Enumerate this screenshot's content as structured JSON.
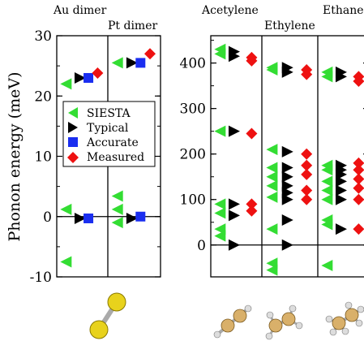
{
  "chart_data": {
    "type": "scatter",
    "ylabel": "Phonon energy (meV)",
    "legend": {
      "placement": "inside left panel",
      "entries": [
        {
          "label": "SIESTA",
          "marker": "triangle-left",
          "color": "#33dd33"
        },
        {
          "label": "Typical",
          "marker": "triangle-right",
          "color": "#000000"
        },
        {
          "label": "Accurate",
          "marker": "square",
          "color": "#1a2ef0"
        },
        {
          "label": "Measured",
          "marker": "diamond",
          "color": "#ee1111"
        }
      ]
    },
    "panels": [
      {
        "ylim": [
          -10,
          30
        ],
        "yticks": [
          "30",
          "20",
          "10",
          "0",
          "-10"
        ],
        "ytick_values": [
          30,
          20,
          10,
          0,
          -10
        ],
        "groups": [
          {
            "label": "Au dimer",
            "series": {
              "SIESTA": [
                22,
                1.2,
                -7.5
              ],
              "Typical": [
                23,
                -0.3
              ],
              "Accurate": [
                23,
                -0.3
              ],
              "Measured": [
                23.8
              ]
            }
          },
          {
            "label": "Pt dimer",
            "series": {
              "SIESTA": [
                25.5,
                3.4,
                1.2,
                -1.0
              ],
              "Typical": [
                25.5,
                -0.3
              ],
              "Accurate": [
                25.5,
                0.0
              ],
              "Measured": [
                27
              ]
            }
          }
        ]
      },
      {
        "ylim": [
          -70,
          460
        ],
        "yticks": [
          "400",
          "300",
          "200",
          "100",
          "0"
        ],
        "ytick_values": [
          400,
          300,
          200,
          100,
          0
        ],
        "groups": [
          {
            "label": "Acetylene",
            "series": {
              "SIESTA": [
                430,
                420,
                250,
                90,
                70,
                35,
                20
              ],
              "Typical": [
                425,
                415,
                250,
                90,
                65,
                0
              ],
              "Measured": [
                412,
                405,
                245,
                90,
                75
              ]
            }
          },
          {
            "label": "Ethylene",
            "series": {
              "SIESTA": [
                390,
                385,
                210,
                170,
                150,
                130,
                105,
                35,
                -40,
                -55
              ],
              "Typical": [
                390,
                380,
                205,
                170,
                150,
                130,
                115,
                100,
                55,
                0
              ],
              "Measured": [
                385,
                375,
                200,
                175,
                155,
                120,
                100
              ]
            }
          },
          {
            "label": "Ethane",
            "series": {
              "SIESTA": [
                380,
                370,
                175,
                165,
                140,
                120,
                100,
                55,
                45,
                -45
              ],
              "Typical": [
                380,
                370,
                175,
                165,
                155,
                140,
                120,
                100,
                35
              ],
              "Measured": [
                370,
                360,
                180,
                165,
                145,
                125,
                100,
                35
              ]
            }
          }
        ]
      }
    ]
  },
  "molecules": [
    "Au dimer",
    "Acetylene",
    "Ethylene",
    "Ethane"
  ],
  "colors": {
    "siesta": "#33dd33",
    "typical": "#000000",
    "accurate": "#1a2ef0",
    "measured": "#ee1111",
    "gold_atom": "#e8d21c",
    "carbon_atom": "#d9b06a",
    "hydrogen_atom": "#dddddd"
  }
}
